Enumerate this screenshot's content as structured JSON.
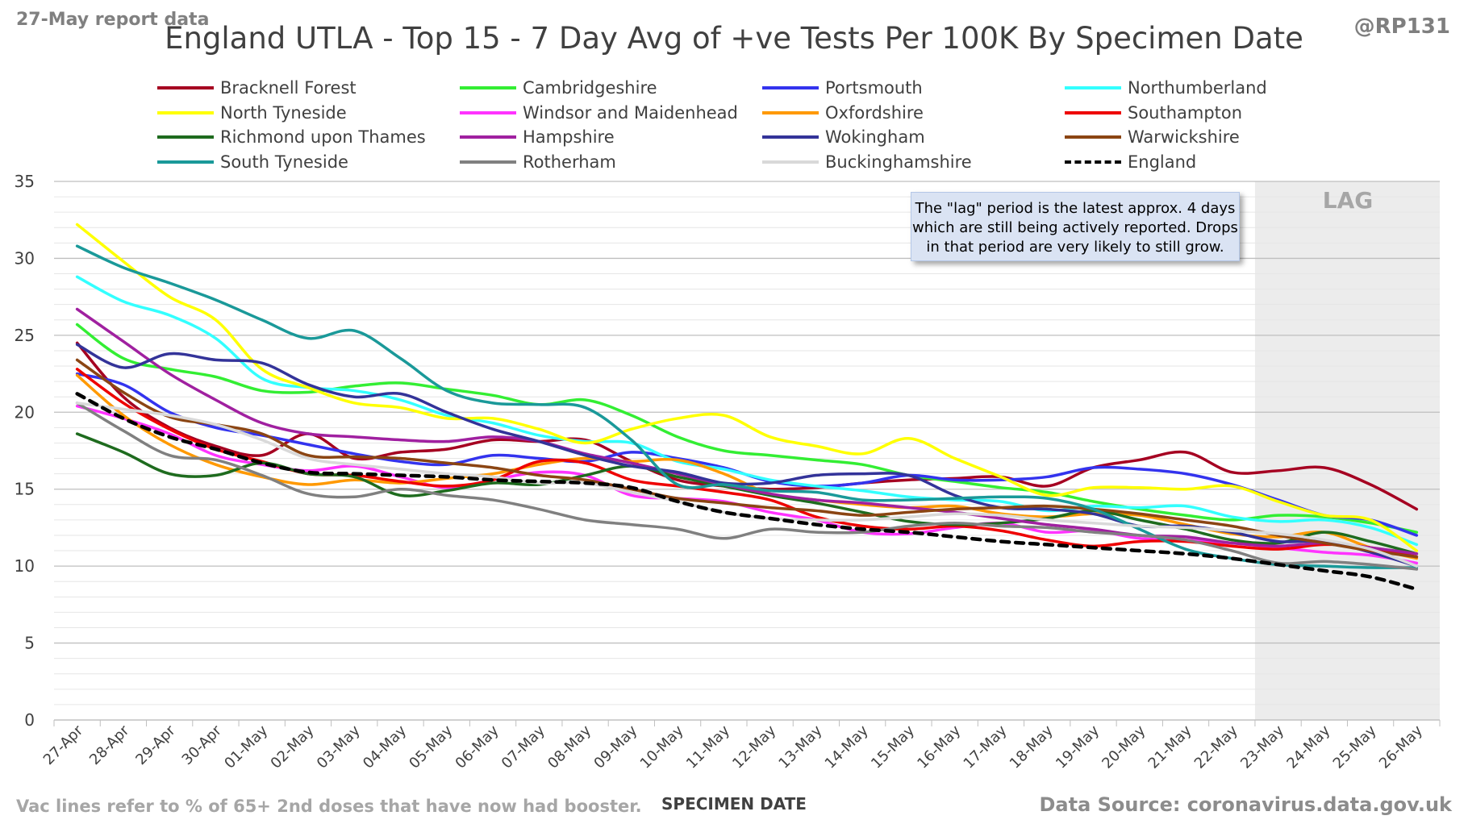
{
  "header": {
    "report_date": "27-May report data",
    "title": "England UTLA - Top 15 - 7 Day Avg of +ve Tests Per 100K By Specimen Date",
    "handle": "@RP131"
  },
  "footer": {
    "vac_note": "Vac lines refer to % of 65+ 2nd doses that have now had booster.",
    "x_axis_title": "SPECIMEN DATE",
    "source": "Data Source: coronavirus.data.gov.uk"
  },
  "annotations": {
    "lag_callout": "The \"lag\" period is the latest approx. 4 days which are still being actively reported. Drops in that period are very likely to still grow.",
    "lag_label": "LAG"
  },
  "chart_data": {
    "type": "line",
    "xlabel": "SPECIMEN DATE",
    "ylabel": "",
    "ylim": [
      0,
      35
    ],
    "y_ticks": [
      0,
      5,
      10,
      15,
      20,
      25,
      30,
      35
    ],
    "minor_gridlines_step": 1,
    "grid": true,
    "legend_position": "top",
    "lag_region": {
      "from": "23-May",
      "to": "26-May"
    },
    "categories": [
      "27-Apr",
      "28-Apr",
      "29-Apr",
      "30-Apr",
      "01-May",
      "02-May",
      "03-May",
      "04-May",
      "05-May",
      "06-May",
      "07-May",
      "08-May",
      "09-May",
      "10-May",
      "11-May",
      "12-May",
      "13-May",
      "14-May",
      "15-May",
      "16-May",
      "17-May",
      "18-May",
      "19-May",
      "20-May",
      "21-May",
      "22-May",
      "23-May",
      "24-May",
      "25-May",
      "26-May"
    ],
    "series": [
      {
        "name": "Bracknell Forest",
        "color": "#a50021",
        "dash": false,
        "values": [
          24.5,
          21.0,
          19.0,
          17.8,
          17.2,
          18.6,
          17.0,
          17.4,
          17.6,
          18.2,
          18.1,
          18.2,
          16.8,
          15.6,
          15.2,
          15.0,
          15.1,
          15.4,
          15.6,
          15.7,
          15.8,
          15.2,
          16.4,
          16.9,
          17.4,
          16.1,
          16.2,
          16.4,
          15.3,
          13.7
        ]
      },
      {
        "name": "Cambridgeshire",
        "color": "#33ee33",
        "dash": false,
        "values": [
          25.7,
          23.5,
          22.8,
          22.3,
          21.4,
          21.3,
          21.7,
          21.9,
          21.5,
          21.1,
          20.5,
          20.8,
          19.8,
          18.4,
          17.5,
          17.2,
          16.9,
          16.6,
          15.9,
          15.5,
          15.1,
          14.8,
          14.2,
          13.7,
          13.3,
          13.0,
          13.3,
          13.2,
          12.8,
          12.2
        ]
      },
      {
        "name": "Portsmouth",
        "color": "#3333ee",
        "dash": false,
        "values": [
          22.5,
          21.8,
          20.0,
          19.0,
          18.5,
          17.9,
          17.3,
          16.8,
          16.6,
          17.2,
          17.0,
          16.8,
          17.4,
          17.0,
          16.4,
          15.5,
          15.2,
          15.4,
          15.9,
          15.6,
          15.6,
          15.8,
          16.4,
          16.3,
          16.0,
          15.3,
          14.3,
          13.3,
          13.0,
          12.0
        ]
      },
      {
        "name": "Northumberland",
        "color": "#33ffff",
        "dash": false,
        "values": [
          28.8,
          27.2,
          26.3,
          24.8,
          22.2,
          21.6,
          21.4,
          20.8,
          19.8,
          19.3,
          18.5,
          18.1,
          18.0,
          16.8,
          16.3,
          15.6,
          15.2,
          14.9,
          14.5,
          14.3,
          14.2,
          13.6,
          13.9,
          13.8,
          13.9,
          13.2,
          12.9,
          13.0,
          12.5,
          11.4
        ]
      },
      {
        "name": "North Tyneside",
        "color": "#ffff00",
        "dash": false,
        "values": [
          32.2,
          29.8,
          27.5,
          26.0,
          22.8,
          21.6,
          20.6,
          20.3,
          19.6,
          19.6,
          18.9,
          18.0,
          18.9,
          19.6,
          19.8,
          18.4,
          17.8,
          17.3,
          18.3,
          17.0,
          15.8,
          14.6,
          15.1,
          15.1,
          15.0,
          15.2,
          14.2,
          13.3,
          13.0,
          11.0
        ]
      },
      {
        "name": "Windsor and Maidenhead",
        "color": "#ff33ff",
        "dash": false,
        "values": [
          20.4,
          19.6,
          18.6,
          17.2,
          16.6,
          16.2,
          16.5,
          15.8,
          15.1,
          15.6,
          16.1,
          15.9,
          14.6,
          14.4,
          14.2,
          13.5,
          13.0,
          12.2,
          12.1,
          12.5,
          12.8,
          12.2,
          12.3,
          11.8,
          11.7,
          11.5,
          11.2,
          10.9,
          10.7,
          10.2
        ]
      },
      {
        "name": "Oxfordshire",
        "color": "#ff9900",
        "dash": false,
        "values": [
          22.4,
          19.8,
          17.9,
          16.6,
          15.8,
          15.3,
          15.6,
          15.4,
          15.7,
          16.0,
          16.6,
          17.0,
          16.8,
          16.9,
          16.0,
          14.7,
          14.3,
          14.0,
          13.8,
          13.9,
          13.4,
          13.2,
          13.4,
          13.3,
          12.7,
          12.1,
          11.9,
          12.2,
          11.2,
          10.5
        ]
      },
      {
        "name": "Southampton",
        "color": "#ee0000",
        "dash": false,
        "values": [
          22.8,
          20.6,
          18.9,
          17.6,
          16.8,
          16.0,
          15.9,
          15.5,
          15.2,
          15.6,
          16.8,
          16.7,
          15.6,
          15.2,
          14.8,
          14.3,
          13.2,
          12.6,
          12.4,
          12.6,
          12.3,
          11.7,
          11.3,
          11.6,
          11.6,
          11.3,
          11.1,
          11.4,
          11.2,
          10.6
        ]
      },
      {
        "name": "Richmond upon Thames",
        "color": "#1e6b1e",
        "dash": false,
        "values": [
          18.6,
          17.4,
          16.0,
          15.9,
          16.7,
          16.0,
          15.8,
          14.6,
          14.9,
          15.4,
          15.3,
          15.9,
          16.5,
          15.8,
          15.2,
          14.6,
          14.1,
          13.5,
          12.9,
          12.7,
          12.8,
          13.1,
          13.6,
          13.0,
          12.4,
          11.7,
          11.5,
          12.2,
          11.6,
          10.8
        ]
      },
      {
        "name": "Hampshire",
        "color": "#a020a0",
        "dash": false,
        "values": [
          26.7,
          24.6,
          22.5,
          20.8,
          19.3,
          18.6,
          18.4,
          18.2,
          18.1,
          18.4,
          18.1,
          17.3,
          16.7,
          16.0,
          15.3,
          14.7,
          14.3,
          14.1,
          13.8,
          13.5,
          13.1,
          12.7,
          12.4,
          12.0,
          11.9,
          11.5,
          11.3,
          11.5,
          11.2,
          10.8
        ]
      },
      {
        "name": "Wokingham",
        "color": "#333399",
        "dash": false,
        "values": [
          24.4,
          22.9,
          23.8,
          23.4,
          23.2,
          21.8,
          21.0,
          21.2,
          20.0,
          18.9,
          18.1,
          17.2,
          16.5,
          16.1,
          15.4,
          15.4,
          15.9,
          16.0,
          15.9,
          14.6,
          13.8,
          13.7,
          13.4,
          12.6,
          12.6,
          12.2,
          11.6,
          11.6,
          10.9,
          10.0
        ]
      },
      {
        "name": "Warwickshire",
        "color": "#8b4513",
        "dash": false,
        "values": [
          23.4,
          21.3,
          19.7,
          19.2,
          18.6,
          17.2,
          17.1,
          17.0,
          16.7,
          16.4,
          15.9,
          15.6,
          15.0,
          14.4,
          14.1,
          13.8,
          13.6,
          13.3,
          13.5,
          13.7,
          13.8,
          13.9,
          13.7,
          13.4,
          13.0,
          12.6,
          12.0,
          11.5,
          11.0,
          10.6
        ]
      },
      {
        "name": "South Tyneside",
        "color": "#1a9999",
        "dash": false,
        "values": [
          30.8,
          29.4,
          28.4,
          27.3,
          26.0,
          24.8,
          25.3,
          23.5,
          21.4,
          20.6,
          20.5,
          20.3,
          18.2,
          15.3,
          15.3,
          14.9,
          14.8,
          14.3,
          14.3,
          14.4,
          14.5,
          14.4,
          13.7,
          12.4,
          11.1,
          10.5,
          10.1,
          10.0,
          9.9,
          9.9
        ]
      },
      {
        "name": "Rotherham",
        "color": "#808080",
        "dash": false,
        "values": [
          20.6,
          18.8,
          17.2,
          16.9,
          15.9,
          14.7,
          14.5,
          15.0,
          14.6,
          14.3,
          13.7,
          13.0,
          12.7,
          12.4,
          11.8,
          12.4,
          12.2,
          12.2,
          12.6,
          12.8,
          12.6,
          12.5,
          12.2,
          12.0,
          11.7,
          11.0,
          10.2,
          10.3,
          10.1,
          9.8
        ]
      },
      {
        "name": "Buckinghamshire",
        "color": "#d9d9d9",
        "dash": false,
        "values": [
          20.6,
          20.2,
          19.8,
          19.2,
          18.2,
          17.0,
          16.6,
          16.3,
          16.0,
          15.8,
          15.4,
          15.4,
          14.8,
          14.2,
          13.5,
          13.1,
          13.0,
          13.0,
          13.2,
          13.4,
          13.3,
          13.0,
          12.8,
          12.6,
          12.5,
          12.3,
          12.1,
          11.7,
          11.1,
          10.0
        ]
      },
      {
        "name": "England",
        "color": "#000000",
        "dash": true,
        "values": [
          21.2,
          19.6,
          18.4,
          17.6,
          16.7,
          16.1,
          16.0,
          15.9,
          15.8,
          15.6,
          15.5,
          15.4,
          15.1,
          14.2,
          13.5,
          13.1,
          12.7,
          12.4,
          12.2,
          11.9,
          11.6,
          11.4,
          11.2,
          11.0,
          10.8,
          10.5,
          10.1,
          9.7,
          9.3,
          8.5
        ]
      }
    ]
  }
}
